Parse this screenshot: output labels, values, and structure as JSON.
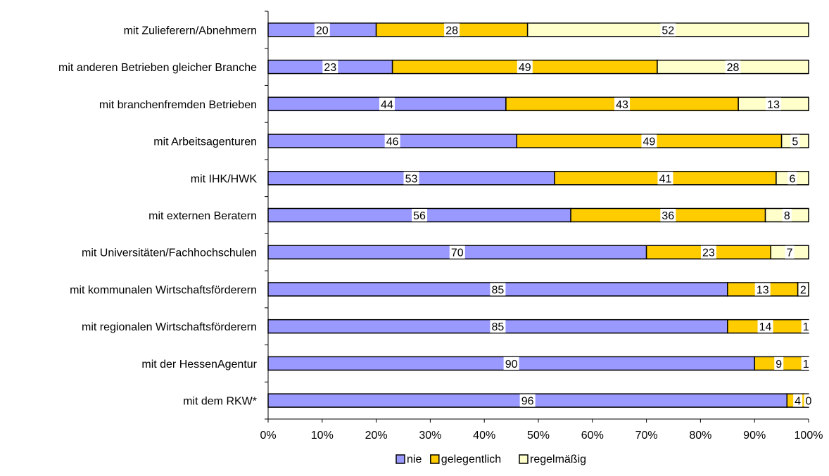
{
  "chart_data": {
    "type": "bar",
    "orientation": "horizontal",
    "stacked": true,
    "percent": true,
    "categories": [
      "mit Zulieferern/Abnehmern",
      "mit anderen Betrieben gleicher Branche",
      "mit branchenfremden Betrieben",
      "mit Arbeitsagenturen",
      "mit IHK/HWK",
      "mit externen Beratern",
      "mit Universitäten/Fachhochschulen",
      "mit kommunalen Wirtschaftsförderern",
      "mit regionalen Wirtschaftsförderern",
      "mit der HessenAgentur",
      "mit dem RKW*"
    ],
    "series": [
      {
        "name": "nie",
        "color": "#9999ff",
        "values": [
          20,
          23,
          44,
          46,
          53,
          56,
          70,
          85,
          85,
          90,
          96
        ]
      },
      {
        "name": "gelegentlich",
        "color": "#ffcc00",
        "values": [
          28,
          49,
          43,
          49,
          41,
          36,
          23,
          13,
          14,
          9,
          4
        ]
      },
      {
        "name": "regelmäßig",
        "color": "#ffffcc",
        "values": [
          52,
          28,
          13,
          5,
          6,
          8,
          7,
          2,
          1,
          1,
          0
        ]
      }
    ],
    "xlim": [
      0,
      100
    ],
    "xticks": [
      "0%",
      "10%",
      "20%",
      "30%",
      "40%",
      "50%",
      "60%",
      "70%",
      "80%",
      "90%",
      "100%"
    ],
    "legend": "bottom",
    "grid": false
  }
}
